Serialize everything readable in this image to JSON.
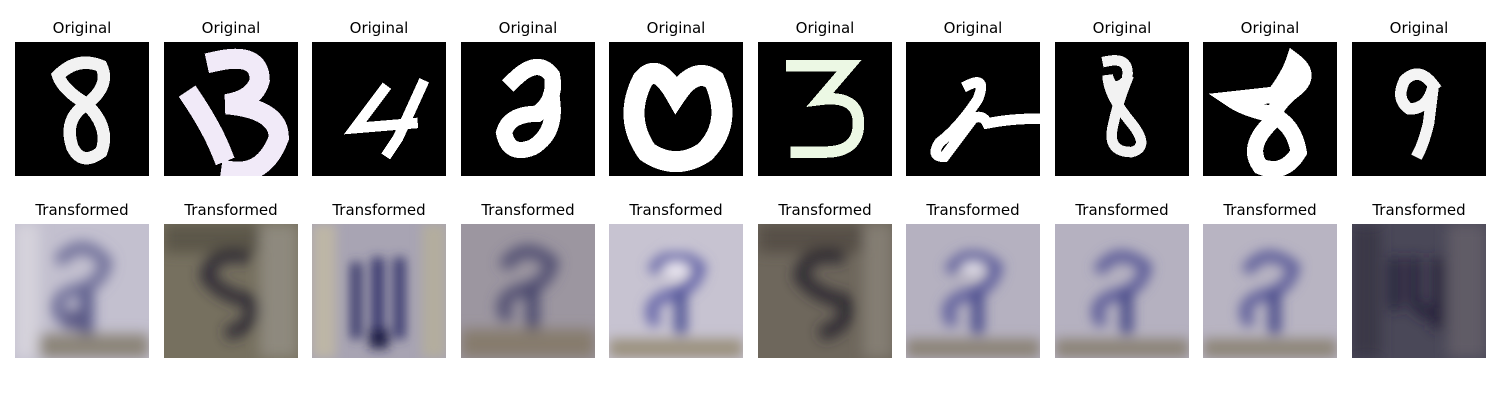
{
  "rows": [
    {
      "id": "original",
      "title": "Original",
      "images": [
        {
          "depicts": "digit 8",
          "tone": "#f2f2f2"
        },
        {
          "depicts": "digit 3",
          "tone": "#f1eaf8"
        },
        {
          "depicts": "digit 4",
          "tone": "#ffffff"
        },
        {
          "depicts": "digit 2",
          "tone": "#ffffff"
        },
        {
          "depicts": "digit 0",
          "tone": "#ffffff"
        },
        {
          "depicts": "digit 3",
          "tone": "#ecf8e4"
        },
        {
          "depicts": "digit 2",
          "tone": "#ffffff"
        },
        {
          "depicts": "digit 8",
          "tone": "#f2f2f2"
        },
        {
          "depicts": "digit 8",
          "tone": "#ffffff"
        },
        {
          "depicts": "digit 9",
          "tone": "#f4f4f4"
        }
      ]
    },
    {
      "id": "transformed",
      "title": "Transformed",
      "images": [
        {
          "depicts": "blurry house number",
          "tone": "#c3c0cf"
        },
        {
          "depicts": "blurry house number",
          "tone": "#76705f"
        },
        {
          "depicts": "blurry house number",
          "tone": "#a8a4b3"
        },
        {
          "depicts": "blurry house number",
          "tone": "#9c96a0"
        },
        {
          "depicts": "blurry house number",
          "tone": "#c7c3d1"
        },
        {
          "depicts": "blurry house number",
          "tone": "#6e675c"
        },
        {
          "depicts": "blurry house number",
          "tone": "#b5b1c0"
        },
        {
          "depicts": "blurry house number",
          "tone": "#b5b1c0"
        },
        {
          "depicts": "blurry house number",
          "tone": "#b8b4c2"
        },
        {
          "depicts": "blurry house number",
          "tone": "#4a4858"
        }
      ]
    }
  ]
}
